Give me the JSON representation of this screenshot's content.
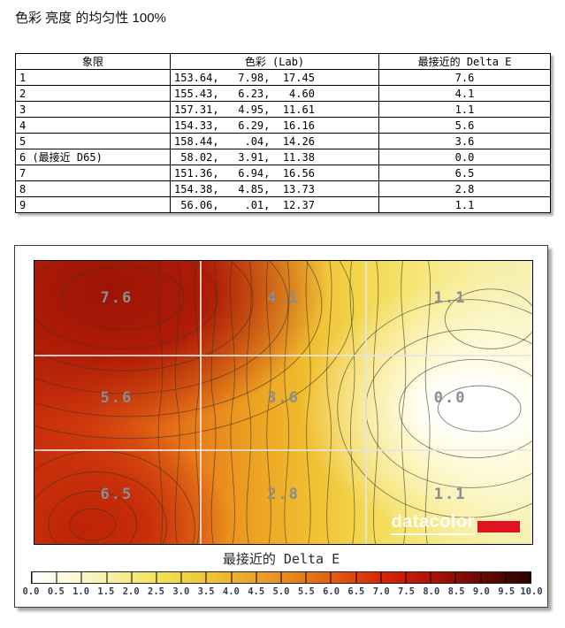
{
  "page": {
    "title": "色彩 亮度 的均匀性 100%"
  },
  "table": {
    "headers": {
      "quadrant": "象限",
      "lab": "色彩 (Lab)",
      "delta_e": "最接近的 Delta E"
    },
    "rows": [
      {
        "quadrant": "1",
        "lab": "153.64,   7.98,  17.45",
        "delta_e": "7.6"
      },
      {
        "quadrant": "2",
        "lab": "155.43,   6.23,   4.60",
        "delta_e": "4.1"
      },
      {
        "quadrant": "3",
        "lab": "157.31,   4.95,  11.61",
        "delta_e": "1.1"
      },
      {
        "quadrant": "4",
        "lab": "154.33,   6.29,  16.16",
        "delta_e": "5.6"
      },
      {
        "quadrant": "5",
        "lab": "158.44,    .04,  14.26",
        "delta_e": "3.6"
      },
      {
        "quadrant": "6 (最接近 D65)",
        "lab": " 58.02,   3.91,  11.38",
        "delta_e": "0.0"
      },
      {
        "quadrant": "7",
        "lab": "151.36,   6.94,  16.56",
        "delta_e": "6.5"
      },
      {
        "quadrant": "8",
        "lab": "154.38,   4.85,  13.73",
        "delta_e": "2.8"
      },
      {
        "quadrant": "9",
        "lab": " 56.06,    .01,  12.37",
        "delta_e": "1.1"
      }
    ]
  },
  "chart_data": {
    "type": "heatmap",
    "title": "最接近的 Delta E",
    "rows": 3,
    "cols": 3,
    "values": [
      [
        7.6,
        4.1,
        1.1
      ],
      [
        5.6,
        3.6,
        0.0
      ],
      [
        6.5,
        2.8,
        1.1
      ]
    ],
    "value_labels": [
      "7.6",
      "4.1",
      "1.1",
      "5.6",
      "3.6",
      "0.0",
      "6.5",
      "2.8",
      "1.1"
    ],
    "legend_position": "bottom",
    "grid": true,
    "colorbar": {
      "min": 0.0,
      "max": 10.0,
      "step": 0.5,
      "ticks": [
        "0.0",
        "0.5",
        "1.0",
        "1.5",
        "2.0",
        "2.5",
        "3.0",
        "3.5",
        "4.0",
        "4.5",
        "5.0",
        "5.5",
        "6.0",
        "6.5",
        "7.0",
        "7.5",
        "8.0",
        "8.5",
        "9.0",
        "9.5",
        "10.0"
      ],
      "colormap": [
        "#ffffff",
        "#fefce8",
        "#fbf7cc",
        "#f8f1ab",
        "#f6ea83",
        "#f3e15c",
        "#f1d63e",
        "#efc636",
        "#edb52c",
        "#eba226",
        "#e98f1f",
        "#e67817",
        "#e35f10",
        "#de430b",
        "#d82708",
        "#c91a07",
        "#ad1306",
        "#8d0e05",
        "#6b0903",
        "#470502",
        "#2b0201"
      ]
    },
    "logo_text": "datacolor",
    "logo_accent_color": "#e01322"
  }
}
